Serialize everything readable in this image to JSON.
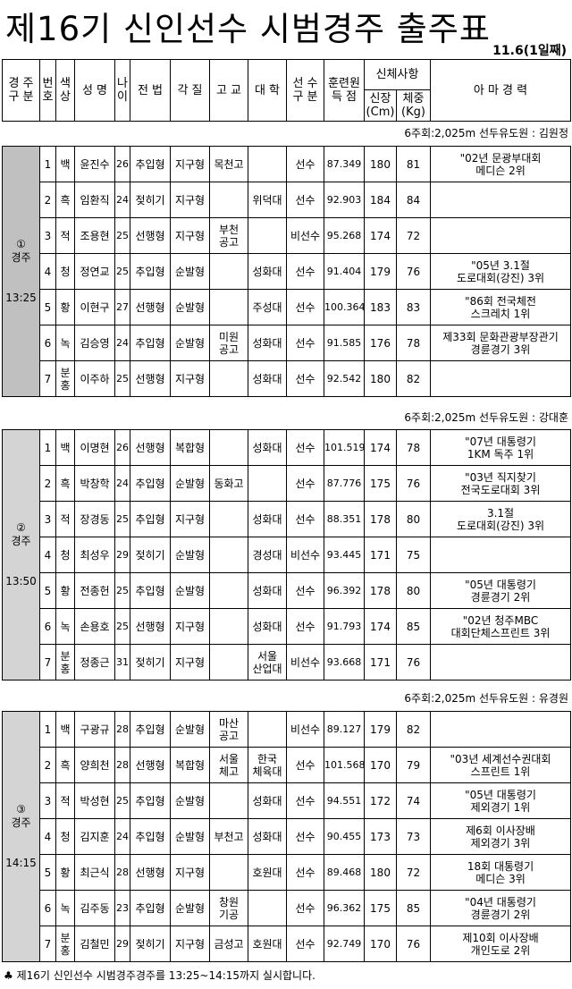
{
  "title": "제16기 신인선수 시범경주 출주표",
  "date": "11.6(1일째)",
  "header": {
    "race": "경 주\n구 분",
    "no": "번\n호",
    "color": "색\n상",
    "name": "성 명",
    "age": "나\n이",
    "tactic": "전 법",
    "type": "각 질",
    "highschool": "고 교",
    "college": "대 학",
    "athlete": "선 수\n구 분",
    "score": "훈련원\n득  점",
    "body": "신체사항",
    "height": "신장\n(Cm)",
    "weight": "체중\n(Kg)",
    "career": "아 마 경 력"
  },
  "races": [
    {
      "caption": "6주회:2,025m  선두유도원 : 김원정",
      "number": "①",
      "label": "경주",
      "time": "13:25",
      "shade": "#c0c0c0",
      "rows": [
        [
          "1",
          "백",
          "윤진수",
          "26",
          "추입형",
          "지구형",
          "목천고",
          "",
          "선수",
          "87.349",
          "180",
          "81",
          "\"02년 문광부대회\n메디슨 2위"
        ],
        [
          "2",
          "흑",
          "임환직",
          "24",
          "젖히기",
          "지구형",
          "",
          "위덕대",
          "선수",
          "92.903",
          "184",
          "84",
          ""
        ],
        [
          "3",
          "적",
          "조용현",
          "25",
          "선행형",
          "지구형",
          "부천\n공고",
          "",
          "비선수",
          "95.268",
          "174",
          "72",
          ""
        ],
        [
          "4",
          "청",
          "정연교",
          "25",
          "추입형",
          "순발형",
          "",
          "성화대",
          "선수",
          "91.404",
          "179",
          "76",
          "\"05년 3.1절\n도로대회(강진) 3위"
        ],
        [
          "5",
          "황",
          "이현구",
          "27",
          "선행형",
          "순발형",
          "",
          "주성대",
          "선수",
          "100.364",
          "183",
          "83",
          "\"86회 전국체전\n스크레치 1위"
        ],
        [
          "6",
          "녹",
          "김승영",
          "24",
          "추입형",
          "순발형",
          "미원\n공고",
          "성화대",
          "선수",
          "91.585",
          "176",
          "78",
          "제33회 문화관광부장관기\n경륜경기 3위"
        ],
        [
          "7",
          "분\n홍",
          "이주하",
          "25",
          "선행형",
          "지구형",
          "",
          "성화대",
          "선수",
          "92.542",
          "180",
          "82",
          ""
        ]
      ]
    },
    {
      "caption": "6주회:2,025m  선두유도원 : 강대훈",
      "number": "②",
      "label": "경주",
      "time": "13:50",
      "shade": "#d4d4d4",
      "rows": [
        [
          "1",
          "백",
          "이명현",
          "26",
          "선행형",
          "복합형",
          "",
          "성화대",
          "선수",
          "101.519",
          "174",
          "78",
          "\"07년 대통령기\n1KM 독주 1위"
        ],
        [
          "2",
          "흑",
          "박창학",
          "24",
          "추입형",
          "순발형",
          "동화고",
          "",
          "선수",
          "87.776",
          "175",
          "76",
          "\"03년 직지찾기\n전국도로대회 3위"
        ],
        [
          "3",
          "적",
          "장경동",
          "25",
          "추입형",
          "지구형",
          "",
          "성화대",
          "선수",
          "88.351",
          "178",
          "80",
          "3.1절\n도로대회(강진) 3위"
        ],
        [
          "4",
          "청",
          "최성우",
          "29",
          "젖히기",
          "순발형",
          "",
          "경성대",
          "비선수",
          "93.445",
          "171",
          "75",
          ""
        ],
        [
          "5",
          "황",
          "전종헌",
          "25",
          "추입형",
          "순발형",
          "",
          "성화대",
          "선수",
          "96.392",
          "178",
          "80",
          "\"05년 대통령기\n경륜경기 2위"
        ],
        [
          "6",
          "녹",
          "손용호",
          "25",
          "선행형",
          "지구형",
          "",
          "성화대",
          "선수",
          "91.793",
          "174",
          "85",
          "\"02년 청주MBC\n대회단체스프린트 3위"
        ],
        [
          "7",
          "분\n홍",
          "정종근",
          "31",
          "젖히기",
          "지구형",
          "",
          "서울\n산업대",
          "비선수",
          "93.668",
          "171",
          "76",
          ""
        ]
      ]
    },
    {
      "caption": "6주회:2,025m  선두유도원 : 유경원",
      "number": "③",
      "label": "경주",
      "time": "14:15",
      "shade": "#d4d4d4",
      "rows": [
        [
          "1",
          "백",
          "구광규",
          "28",
          "추입형",
          "순발형",
          "마산\n공고",
          "",
          "비선수",
          "89.127",
          "179",
          "82",
          ""
        ],
        [
          "2",
          "흑",
          "양희천",
          "28",
          "선행형",
          "복합형",
          "서울\n체고",
          "한국\n체육대",
          "선수",
          "101.568",
          "170",
          "79",
          "\"03년 세계선수권대회\n스프린트 1위"
        ],
        [
          "3",
          "적",
          "박성현",
          "25",
          "추입형",
          "순발형",
          "",
          "성화대",
          "선수",
          "94.551",
          "172",
          "74",
          "\"05년 대통령기\n제외경기 1위"
        ],
        [
          "4",
          "청",
          "김지훈",
          "24",
          "추입형",
          "순발형",
          "부천고",
          "성화대",
          "선수",
          "90.455",
          "173",
          "73",
          "제6회 이사장배\n제외경기 3위"
        ],
        [
          "5",
          "황",
          "최근식",
          "28",
          "선행형",
          "지구형",
          "",
          "호원대",
          "선수",
          "89.468",
          "180",
          "72",
          "18회 대통령기\n메디슨 3위"
        ],
        [
          "6",
          "녹",
          "김주동",
          "23",
          "추입형",
          "순발형",
          "창원\n기공",
          "",
          "선수",
          "96.362",
          "175",
          "85",
          "\"04년 대통령기\n경륜경기 2위"
        ],
        [
          "7",
          "분\n홍",
          "김철민",
          "29",
          "젖히기",
          "지구형",
          "금성고",
          "호원대",
          "선수",
          "92.749",
          "170",
          "76",
          "제10회 이사장배\n개인도로 2위"
        ]
      ]
    }
  ],
  "footer": "♣ 제16기 신인선수 시범경주경주를 13:25~14:15까지 실시합니다."
}
